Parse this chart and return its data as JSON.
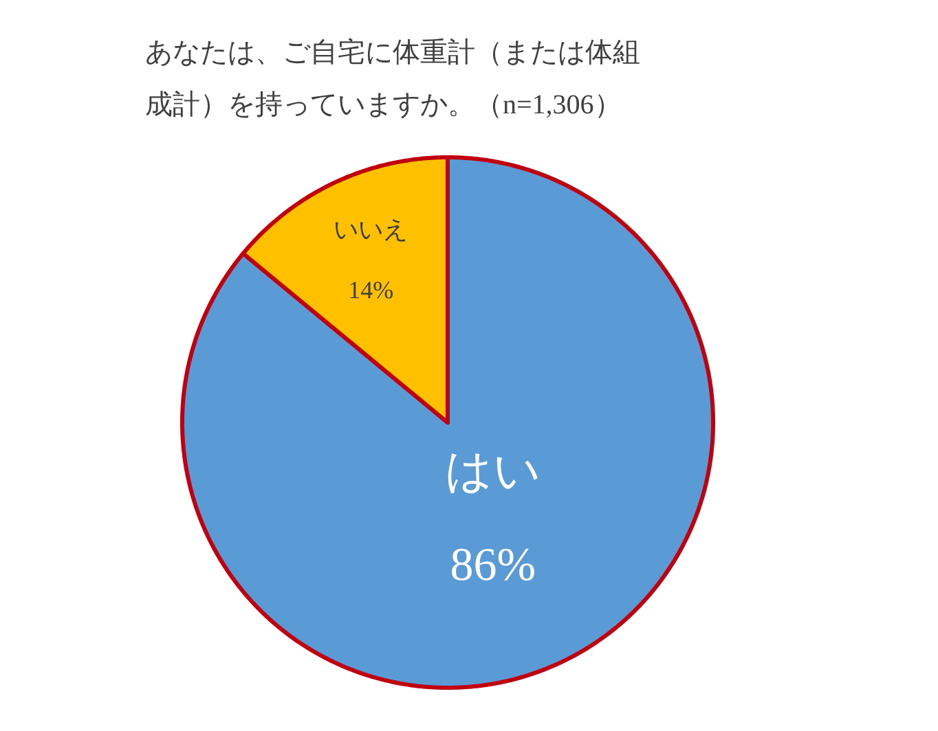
{
  "chart_data": {
    "type": "pie",
    "title": "あなたは、ご自宅に体重計（または体組成計）を持っていますか。（n=1,306）",
    "categories": [
      "はい",
      "いいえ"
    ],
    "values": [
      86,
      14
    ],
    "colors": [
      "#5b9bd5",
      "#ffc000"
    ],
    "value_labels": [
      "86%",
      "14%"
    ]
  }
}
